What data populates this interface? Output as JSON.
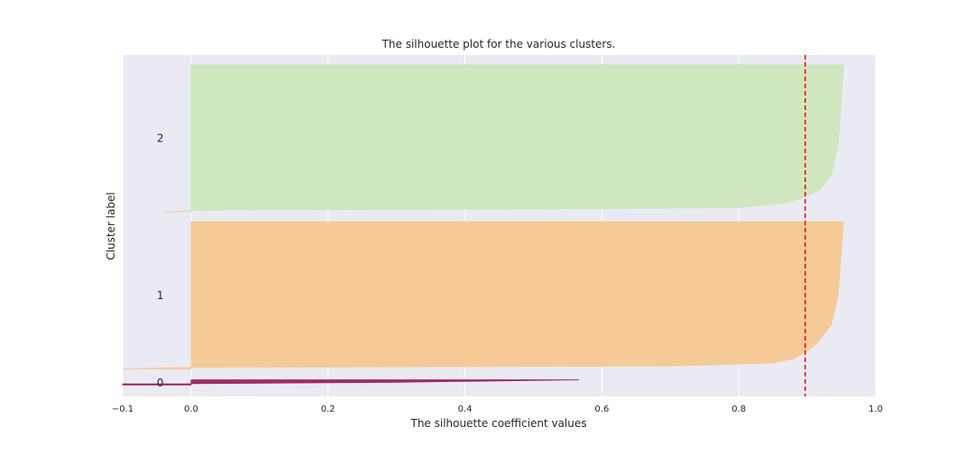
{
  "chart_data": {
    "type": "area",
    "subtype": "silhouette",
    "title": "The silhouette plot for the various clusters.",
    "xlabel": "The silhouette coefficient values",
    "ylabel": "Cluster label",
    "xlim": [
      -0.1,
      1.0
    ],
    "xticks": [
      "−0.1",
      "0.0",
      "0.2",
      "0.4",
      "0.6",
      "0.8",
      "1.0"
    ],
    "xtick_values": [
      -0.1,
      0.0,
      0.2,
      0.4,
      0.6,
      0.8,
      1.0
    ],
    "grid": true,
    "average_silhouette_score": 0.897,
    "clusters": [
      {
        "label": "0",
        "color": "#9b1a55",
        "samples": 8,
        "max_value": 0.567,
        "min_value": -0.1
      },
      {
        "label": "1",
        "color": "#f6c68c",
        "samples": 150,
        "max_value": 0.953,
        "min_value": -0.1,
        "profile": [
          [
            0,
            0.953
          ],
          [
            0.5,
            0.945
          ],
          [
            0.7,
            0.935
          ],
          [
            0.82,
            0.915
          ],
          [
            0.88,
            0.9
          ],
          [
            0.93,
            0.88
          ],
          [
            0.96,
            0.85
          ],
          [
            0.98,
            0.7
          ],
          [
            0.985,
            0.3
          ],
          [
            0.99,
            0.0
          ],
          [
            1.0,
            -0.1
          ]
        ]
      },
      {
        "label": "2",
        "color": "#cde5b9",
        "samples": 150,
        "max_value": 0.953,
        "min_value": -0.04,
        "profile": [
          [
            0,
            0.953
          ],
          [
            0.55,
            0.945
          ],
          [
            0.75,
            0.935
          ],
          [
            0.85,
            0.918
          ],
          [
            0.9,
            0.895
          ],
          [
            0.94,
            0.87
          ],
          [
            0.97,
            0.8
          ],
          [
            0.98,
            0.5
          ],
          [
            0.985,
            0.1
          ],
          [
            0.99,
            0.0
          ],
          [
            1.0,
            -0.04
          ]
        ]
      }
    ]
  }
}
